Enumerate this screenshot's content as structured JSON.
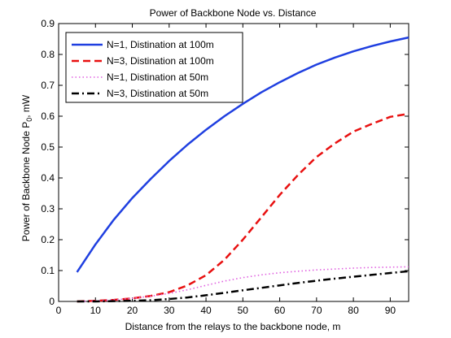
{
  "chart_data": {
    "type": "line",
    "title": "Power of Backbone Node vs. Distance",
    "xlabel": "Distance from the relays to the backbone node, m",
    "ylabel": {
      "main": "Power of Backbone Node P",
      "sub": "0",
      "suffix": ", mW"
    },
    "xlim": [
      0,
      95
    ],
    "ylim": [
      0,
      0.9
    ],
    "xticks": [
      0,
      10,
      20,
      30,
      40,
      50,
      60,
      70,
      80,
      90
    ],
    "yticks": [
      0,
      0.1,
      0.2,
      0.3,
      0.4,
      0.5,
      0.6,
      0.7,
      0.8,
      0.9
    ],
    "grid": false,
    "legend_position": "top-left",
    "series": [
      {
        "name": "N=1, Distination at 100m",
        "color": "#1f3fe0",
        "dash": "solid",
        "x": [
          5,
          10,
          15,
          20,
          25,
          30,
          35,
          40,
          45,
          50,
          55,
          60,
          65,
          70,
          75,
          80,
          85,
          90,
          95
        ],
        "y": [
          0.095,
          0.185,
          0.265,
          0.335,
          0.397,
          0.455,
          0.508,
          0.556,
          0.6,
          0.64,
          0.677,
          0.71,
          0.74,
          0.767,
          0.79,
          0.81,
          0.827,
          0.842,
          0.855
        ]
      },
      {
        "name": "N=3, Distination at 100m",
        "color": "#e81010",
        "dash": "dashed",
        "x": [
          5,
          10,
          15,
          20,
          25,
          30,
          35,
          40,
          45,
          50,
          55,
          60,
          65,
          70,
          75,
          80,
          85,
          90,
          95
        ],
        "y": [
          0.0,
          0.002,
          0.005,
          0.01,
          0.018,
          0.03,
          0.052,
          0.085,
          0.135,
          0.2,
          0.272,
          0.345,
          0.41,
          0.468,
          0.512,
          0.55,
          0.575,
          0.598,
          0.608
        ]
      },
      {
        "name": "N=1, Distination at 50m",
        "color": "#e060e0",
        "dash": "dotted",
        "x": [
          5,
          10,
          15,
          20,
          25,
          30,
          35,
          40,
          45,
          50,
          55,
          60,
          65,
          70,
          75,
          80,
          85,
          90,
          95
        ],
        "y": [
          0.0,
          0.002,
          0.005,
          0.01,
          0.017,
          0.026,
          0.038,
          0.052,
          0.066,
          0.077,
          0.086,
          0.093,
          0.098,
          0.102,
          0.105,
          0.108,
          0.11,
          0.111,
          0.112
        ]
      },
      {
        "name": "N=3, Distination at 50m",
        "color": "#000000",
        "dash": "dashdot",
        "x": [
          5,
          10,
          15,
          20,
          25,
          30,
          35,
          40,
          45,
          50,
          55,
          60,
          65,
          70,
          75,
          80,
          85,
          90,
          95
        ],
        "y": [
          0.0,
          0.0,
          0.001,
          0.002,
          0.004,
          0.008,
          0.013,
          0.02,
          0.028,
          0.036,
          0.044,
          0.052,
          0.06,
          0.067,
          0.074,
          0.08,
          0.086,
          0.092,
          0.098
        ]
      }
    ]
  }
}
